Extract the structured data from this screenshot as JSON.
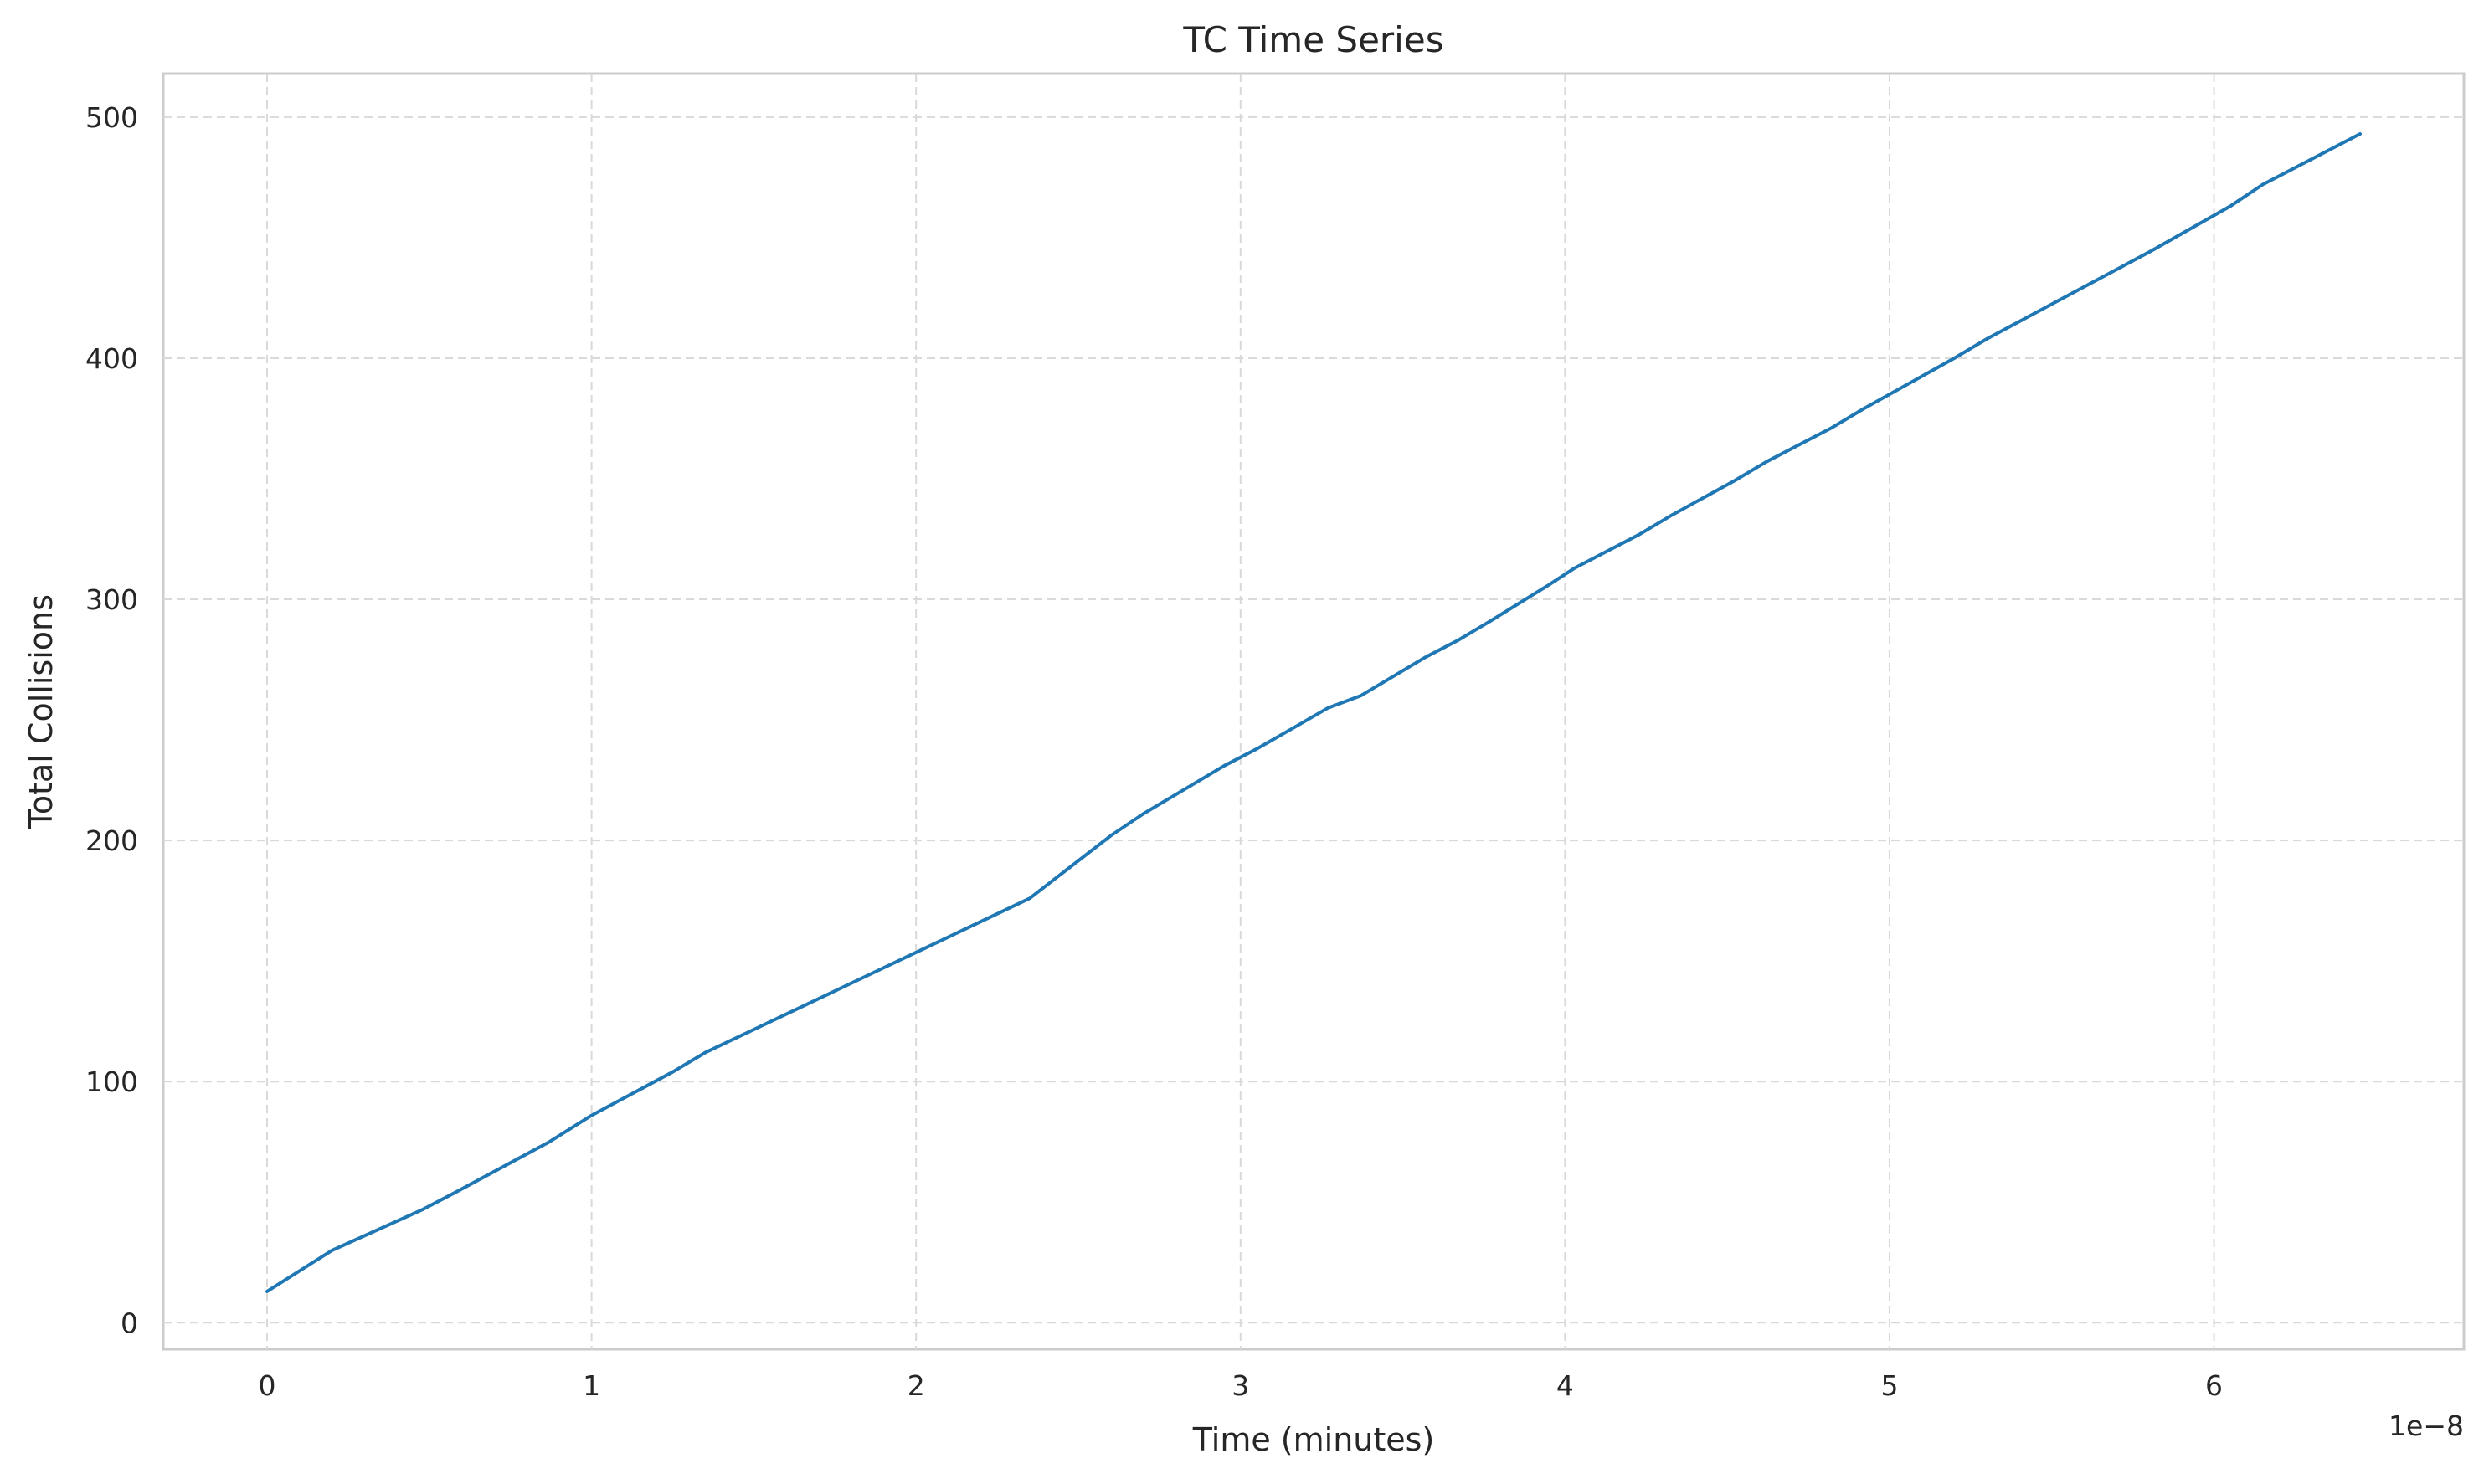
{
  "chart_data": {
    "type": "line",
    "title": "TC Time Series",
    "xlabel": "Time (minutes)",
    "ylabel": "Total Collisions",
    "x_offset_label": "1e−8",
    "xlim": [
      -0.32,
      6.77
    ],
    "ylim": [
      -11,
      518
    ],
    "xticks": [
      0,
      1,
      2,
      3,
      4,
      5,
      6
    ],
    "xtick_labels": [
      "0",
      "1",
      "2",
      "3",
      "4",
      "5",
      "6"
    ],
    "yticks": [
      0,
      100,
      200,
      300,
      400,
      500
    ],
    "ytick_labels": [
      "0",
      "100",
      "200",
      "300",
      "400",
      "500"
    ],
    "grid": true,
    "series": [
      {
        "color": "#1f77b4",
        "x": [
          0,
          0.2,
          0.48,
          0.58,
          0.87,
          1.0,
          1.25,
          1.35,
          1.6,
          1.85,
          2.1,
          2.35,
          2.6,
          2.7,
          2.95,
          3.05,
          3.18,
          3.27,
          3.37,
          3.57,
          3.67,
          3.77,
          3.95,
          4.03,
          4.23,
          4.33,
          4.52,
          4.62,
          4.82,
          4.92,
          5.2,
          5.3,
          5.55,
          5.8,
          6.05,
          6.15,
          6.45
        ],
        "y": [
          13,
          30,
          47,
          54,
          75,
          86,
          104,
          112,
          128,
          144,
          160,
          176,
          202,
          211,
          231,
          238,
          248,
          255,
          260,
          276,
          283,
          291,
          306,
          313,
          327,
          335,
          349,
          357,
          371,
          379,
          400,
          408,
          426,
          444,
          463,
          472,
          493
        ]
      }
    ]
  }
}
